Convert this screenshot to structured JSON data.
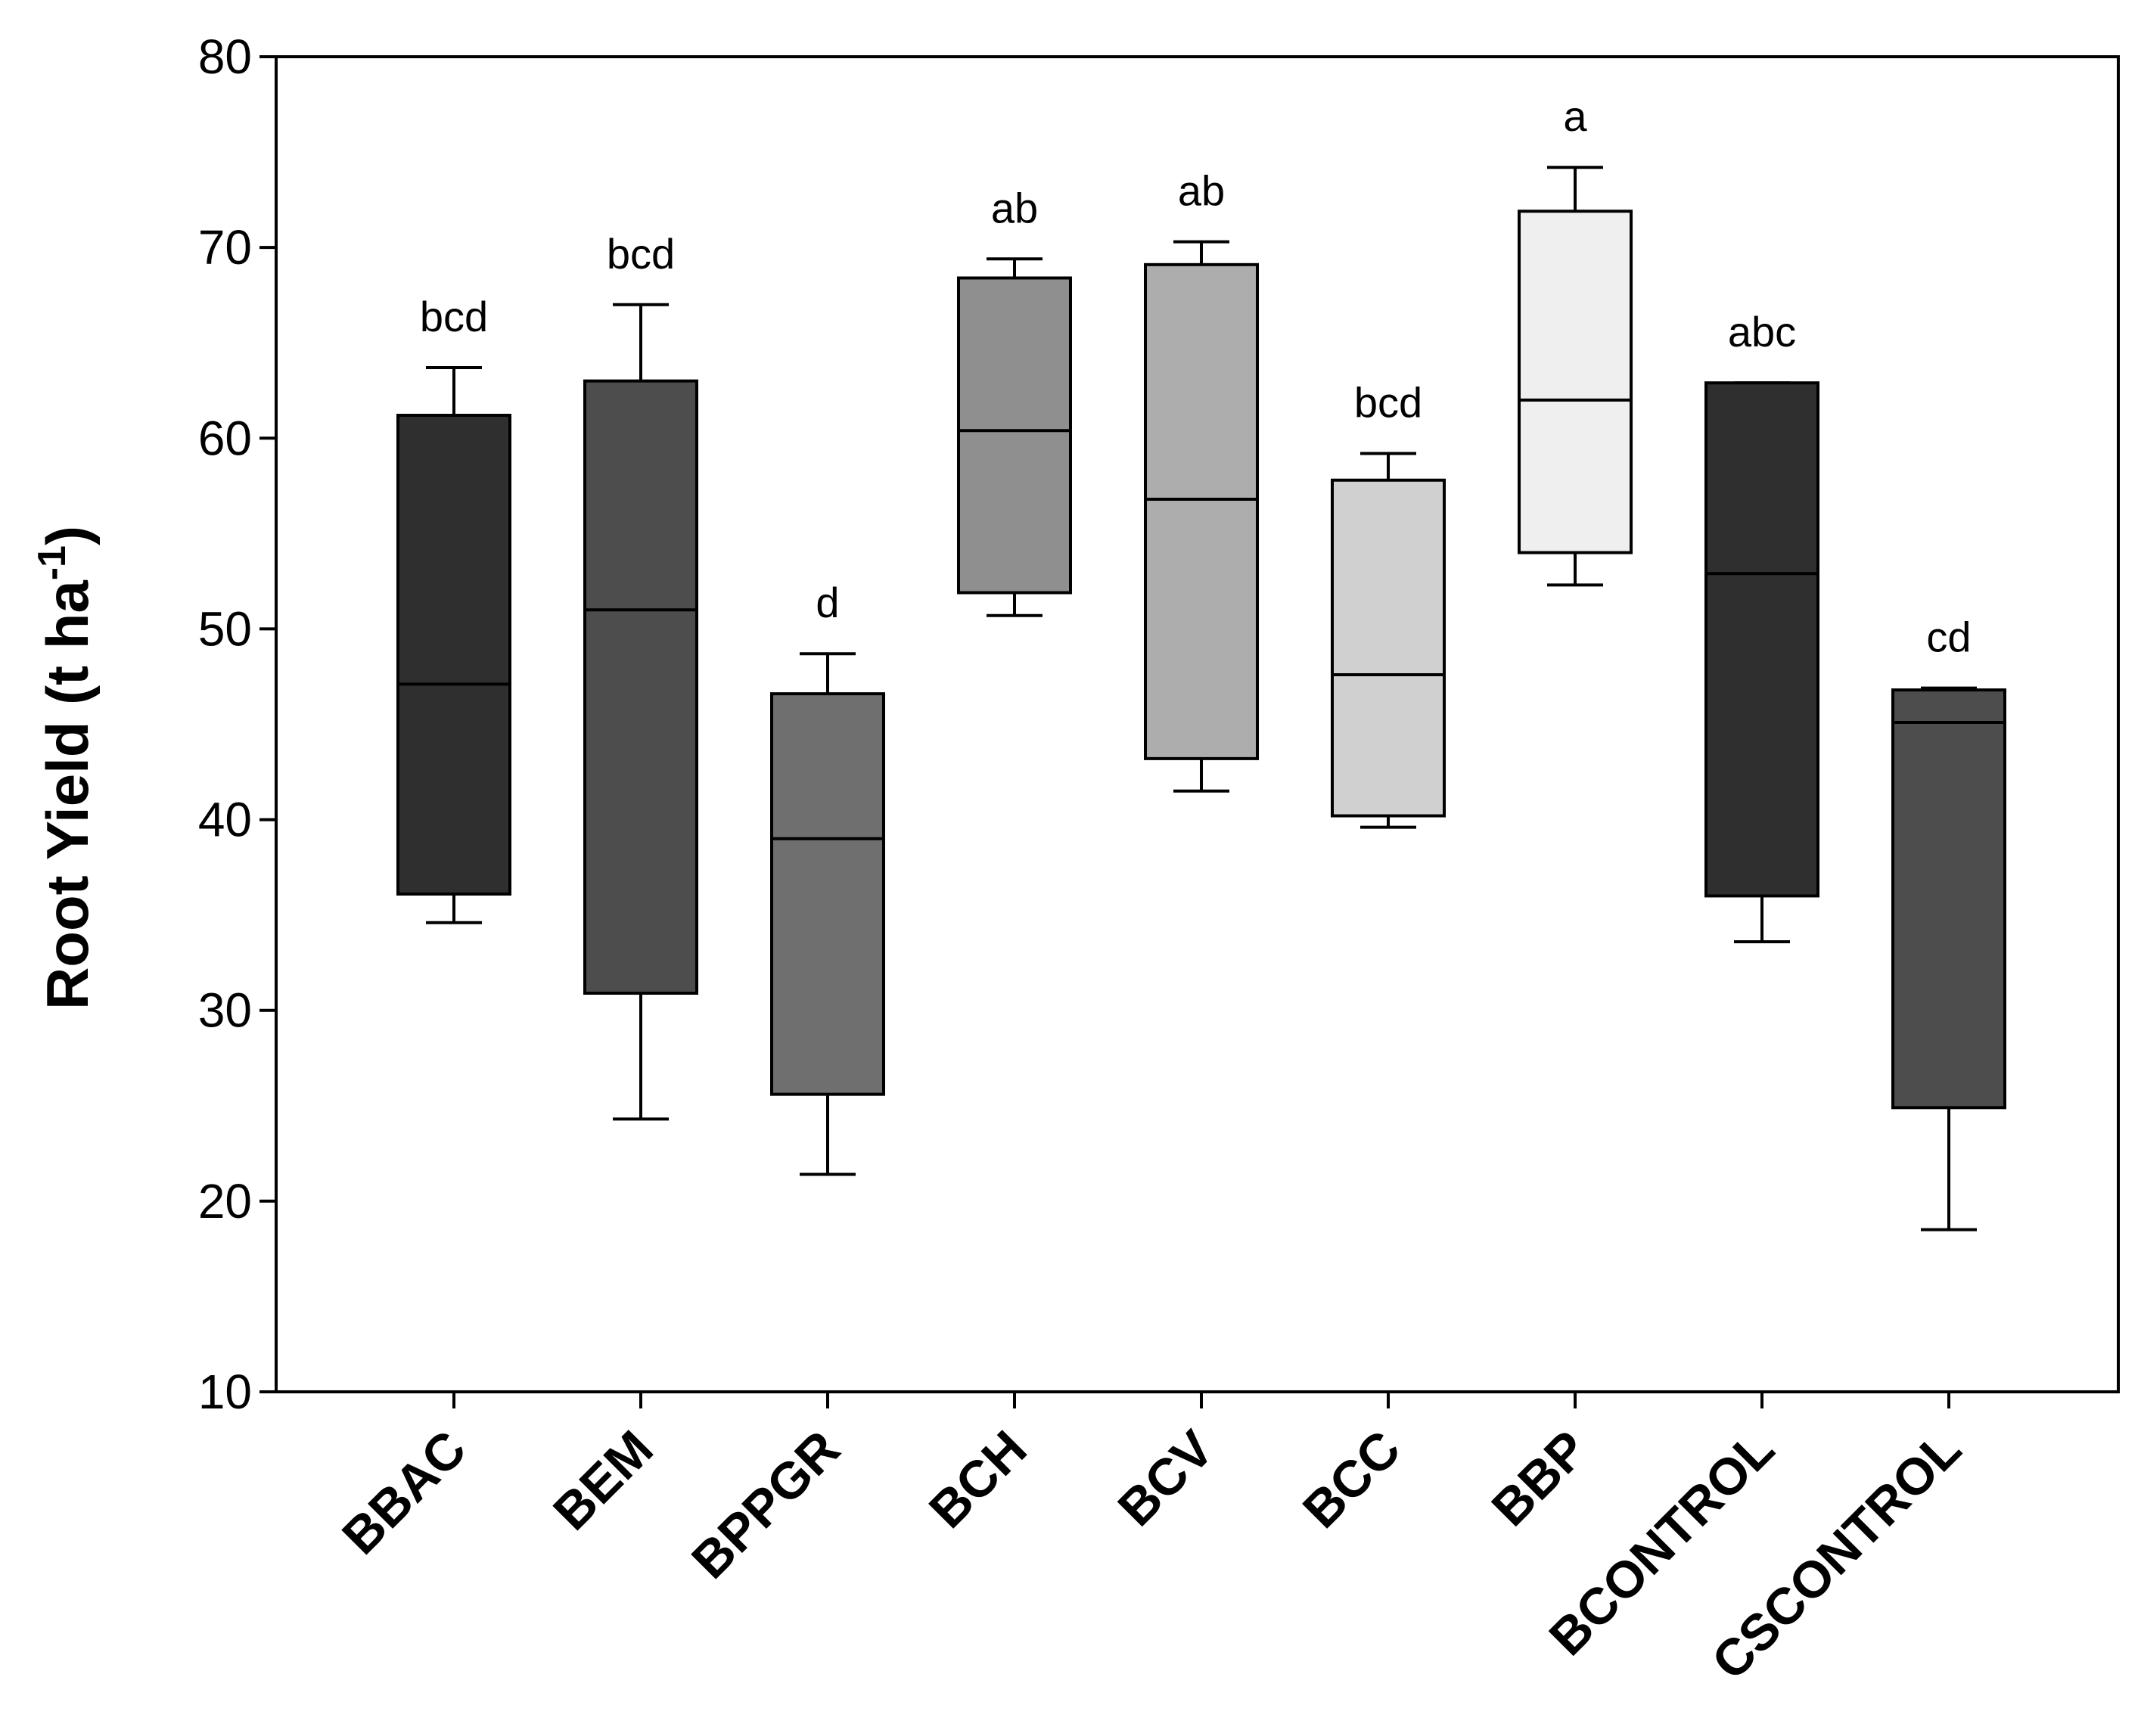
{
  "chart_data": {
    "type": "box",
    "title": "",
    "xlabel": "",
    "ylabel": "Root Yield (t ha",
    "ylabel_superscript": "-1",
    "ylabel_close": ")",
    "ylim": [
      10,
      80
    ],
    "yticks": [
      10,
      20,
      30,
      40,
      50,
      60,
      70,
      80
    ],
    "grid": false,
    "categories": [
      "BBAC",
      "BEM",
      "BPPGR",
      "BCH",
      "BCV",
      "BCC",
      "BBP",
      "BCONTROL",
      "CSCONTROL"
    ],
    "boxes": [
      {
        "name": "BBAC",
        "whisker_low": 34.6,
        "q1": 36.1,
        "median": 47.1,
        "q3": 61.2,
        "whisker_high": 63.7,
        "significance": "bcd",
        "fill": "#2f2f2f"
      },
      {
        "name": "BEM",
        "whisker_low": 24.3,
        "q1": 30.9,
        "median": 51.0,
        "q3": 63.0,
        "whisker_high": 67.0,
        "significance": "bcd",
        "fill": "#4d4d4d"
      },
      {
        "name": "BPPGR",
        "whisker_low": 21.4,
        "q1": 25.6,
        "median": 39.0,
        "q3": 46.6,
        "whisker_high": 48.7,
        "significance": "d",
        "fill": "#6f6f6f"
      },
      {
        "name": "BCH",
        "whisker_low": 50.7,
        "q1": 51.9,
        "median": 60.4,
        "q3": 68.4,
        "whisker_high": 69.4,
        "significance": "ab",
        "fill": "#8f8f8f"
      },
      {
        "name": "BCV",
        "whisker_low": 41.5,
        "q1": 43.2,
        "median": 56.8,
        "q3": 69.1,
        "whisker_high": 70.3,
        "significance": "ab",
        "fill": "#adadad"
      },
      {
        "name": "BCC",
        "whisker_low": 39.6,
        "q1": 40.2,
        "median": 47.6,
        "q3": 57.8,
        "whisker_high": 59.2,
        "significance": "bcd",
        "fill": "#d0d0d0"
      },
      {
        "name": "BBP",
        "whisker_low": 52.3,
        "q1": 54.0,
        "median": 62.0,
        "q3": 71.9,
        "whisker_high": 74.2,
        "significance": "a",
        "fill": "#efefef"
      },
      {
        "name": "BCONTROL",
        "whisker_low": 33.6,
        "q1": 36.0,
        "median": 52.9,
        "q3": 62.9,
        "whisker_high": 62.9,
        "significance": "abc",
        "fill": "#2f2f2f"
      },
      {
        "name": "CSCONTROL",
        "whisker_low": 18.5,
        "q1": 24.9,
        "median": 45.1,
        "q3": 46.8,
        "whisker_high": 46.9,
        "significance": "cd",
        "fill": "#4d4d4d"
      }
    ]
  }
}
